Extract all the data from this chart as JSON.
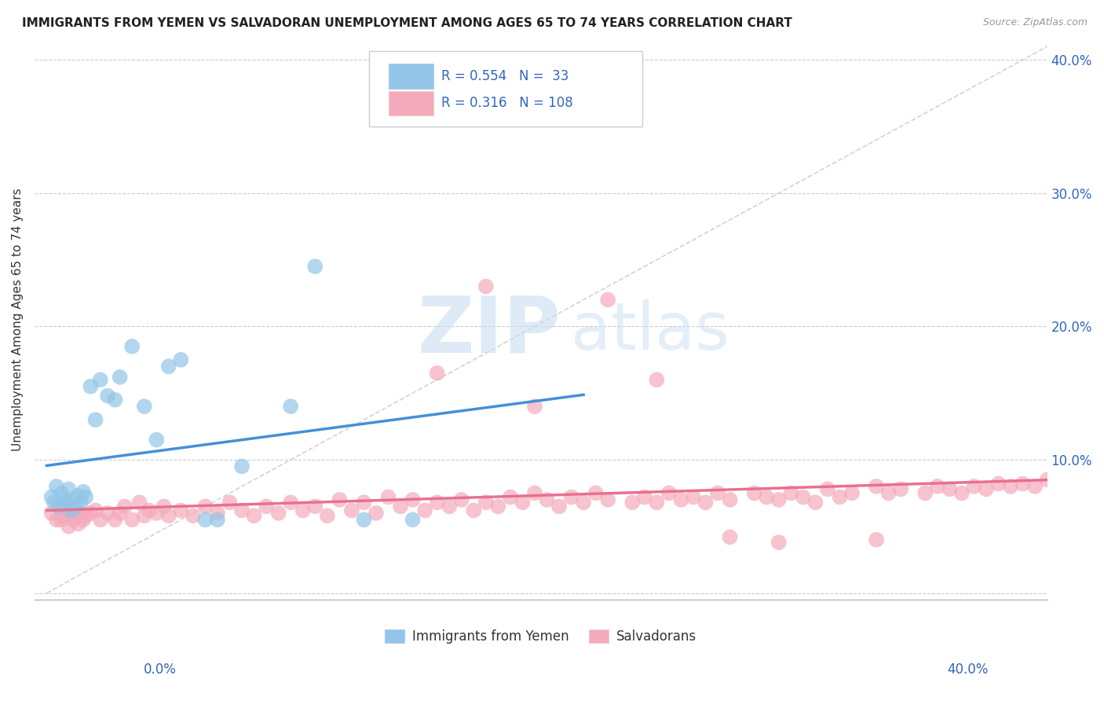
{
  "title": "IMMIGRANTS FROM YEMEN VS SALVADORAN UNEMPLOYMENT AMONG AGES 65 TO 74 YEARS CORRELATION CHART",
  "source": "Source: ZipAtlas.com",
  "ylabel": "Unemployment Among Ages 65 to 74 years",
  "xlim": [
    0.0,
    0.4
  ],
  "ylim": [
    0.0,
    0.42
  ],
  "yticks": [
    0.0,
    0.1,
    0.2,
    0.3,
    0.4
  ],
  "ytick_labels": [
    "",
    "10.0%",
    "20.0%",
    "30.0%",
    "40.0%"
  ],
  "legend_R1": "0.554",
  "legend_N1": "33",
  "legend_R2": "0.316",
  "legend_N2": "108",
  "blue_color": "#92C5E8",
  "pink_color": "#F4AABB",
  "line_blue": "#4490D8",
  "line_pink": "#E87090",
  "trend_gray": "#C8C8C8",
  "background": "#FFFFFF",
  "blue_x": [
    0.002,
    0.003,
    0.004,
    0.005,
    0.006,
    0.007,
    0.008,
    0.009,
    0.01,
    0.011,
    0.012,
    0.013,
    0.014,
    0.015,
    0.016,
    0.018,
    0.02,
    0.022,
    0.025,
    0.028,
    0.03,
    0.035,
    0.04,
    0.045,
    0.05,
    0.055,
    0.065,
    0.07,
    0.08,
    0.1,
    0.11,
    0.13,
    0.15
  ],
  "blue_y": [
    0.072,
    0.068,
    0.08,
    0.065,
    0.075,
    0.07,
    0.068,
    0.078,
    0.062,
    0.07,
    0.065,
    0.073,
    0.068,
    0.076,
    0.072,
    0.155,
    0.13,
    0.16,
    0.148,
    0.145,
    0.162,
    0.185,
    0.14,
    0.115,
    0.17,
    0.175,
    0.055,
    0.055,
    0.095,
    0.14,
    0.245,
    0.055,
    0.055
  ],
  "pink_x": [
    0.002,
    0.004,
    0.005,
    0.006,
    0.007,
    0.008,
    0.009,
    0.01,
    0.011,
    0.012,
    0.013,
    0.014,
    0.015,
    0.016,
    0.018,
    0.02,
    0.022,
    0.025,
    0.028,
    0.03,
    0.032,
    0.035,
    0.038,
    0.04,
    0.042,
    0.045,
    0.048,
    0.05,
    0.055,
    0.06,
    0.065,
    0.07,
    0.075,
    0.08,
    0.085,
    0.09,
    0.095,
    0.1,
    0.105,
    0.11,
    0.115,
    0.12,
    0.125,
    0.13,
    0.135,
    0.14,
    0.145,
    0.15,
    0.155,
    0.16,
    0.165,
    0.17,
    0.175,
    0.18,
    0.185,
    0.19,
    0.195,
    0.2,
    0.205,
    0.21,
    0.215,
    0.22,
    0.225,
    0.23,
    0.24,
    0.245,
    0.25,
    0.255,
    0.26,
    0.265,
    0.27,
    0.275,
    0.28,
    0.29,
    0.295,
    0.3,
    0.305,
    0.31,
    0.315,
    0.32,
    0.325,
    0.33,
    0.34,
    0.345,
    0.35,
    0.36,
    0.365,
    0.37,
    0.375,
    0.38,
    0.385,
    0.39,
    0.395,
    0.4,
    0.405,
    0.41,
    0.415,
    0.42,
    0.34,
    0.3,
    0.28,
    0.25,
    0.23,
    0.2,
    0.18,
    0.16
  ],
  "pink_y": [
    0.06,
    0.055,
    0.065,
    0.055,
    0.058,
    0.062,
    0.05,
    0.06,
    0.055,
    0.058,
    0.052,
    0.06,
    0.055,
    0.058,
    0.06,
    0.062,
    0.055,
    0.06,
    0.055,
    0.06,
    0.065,
    0.055,
    0.068,
    0.058,
    0.062,
    0.06,
    0.065,
    0.058,
    0.062,
    0.058,
    0.065,
    0.06,
    0.068,
    0.062,
    0.058,
    0.065,
    0.06,
    0.068,
    0.062,
    0.065,
    0.058,
    0.07,
    0.062,
    0.068,
    0.06,
    0.072,
    0.065,
    0.07,
    0.062,
    0.068,
    0.065,
    0.07,
    0.062,
    0.068,
    0.065,
    0.072,
    0.068,
    0.075,
    0.07,
    0.065,
    0.072,
    0.068,
    0.075,
    0.07,
    0.068,
    0.072,
    0.068,
    0.075,
    0.07,
    0.072,
    0.068,
    0.075,
    0.07,
    0.075,
    0.072,
    0.07,
    0.075,
    0.072,
    0.068,
    0.078,
    0.072,
    0.075,
    0.08,
    0.075,
    0.078,
    0.075,
    0.08,
    0.078,
    0.075,
    0.08,
    0.078,
    0.082,
    0.08,
    0.082,
    0.08,
    0.085,
    0.082,
    0.085,
    0.04,
    0.038,
    0.042,
    0.16,
    0.22,
    0.14,
    0.23,
    0.165
  ]
}
